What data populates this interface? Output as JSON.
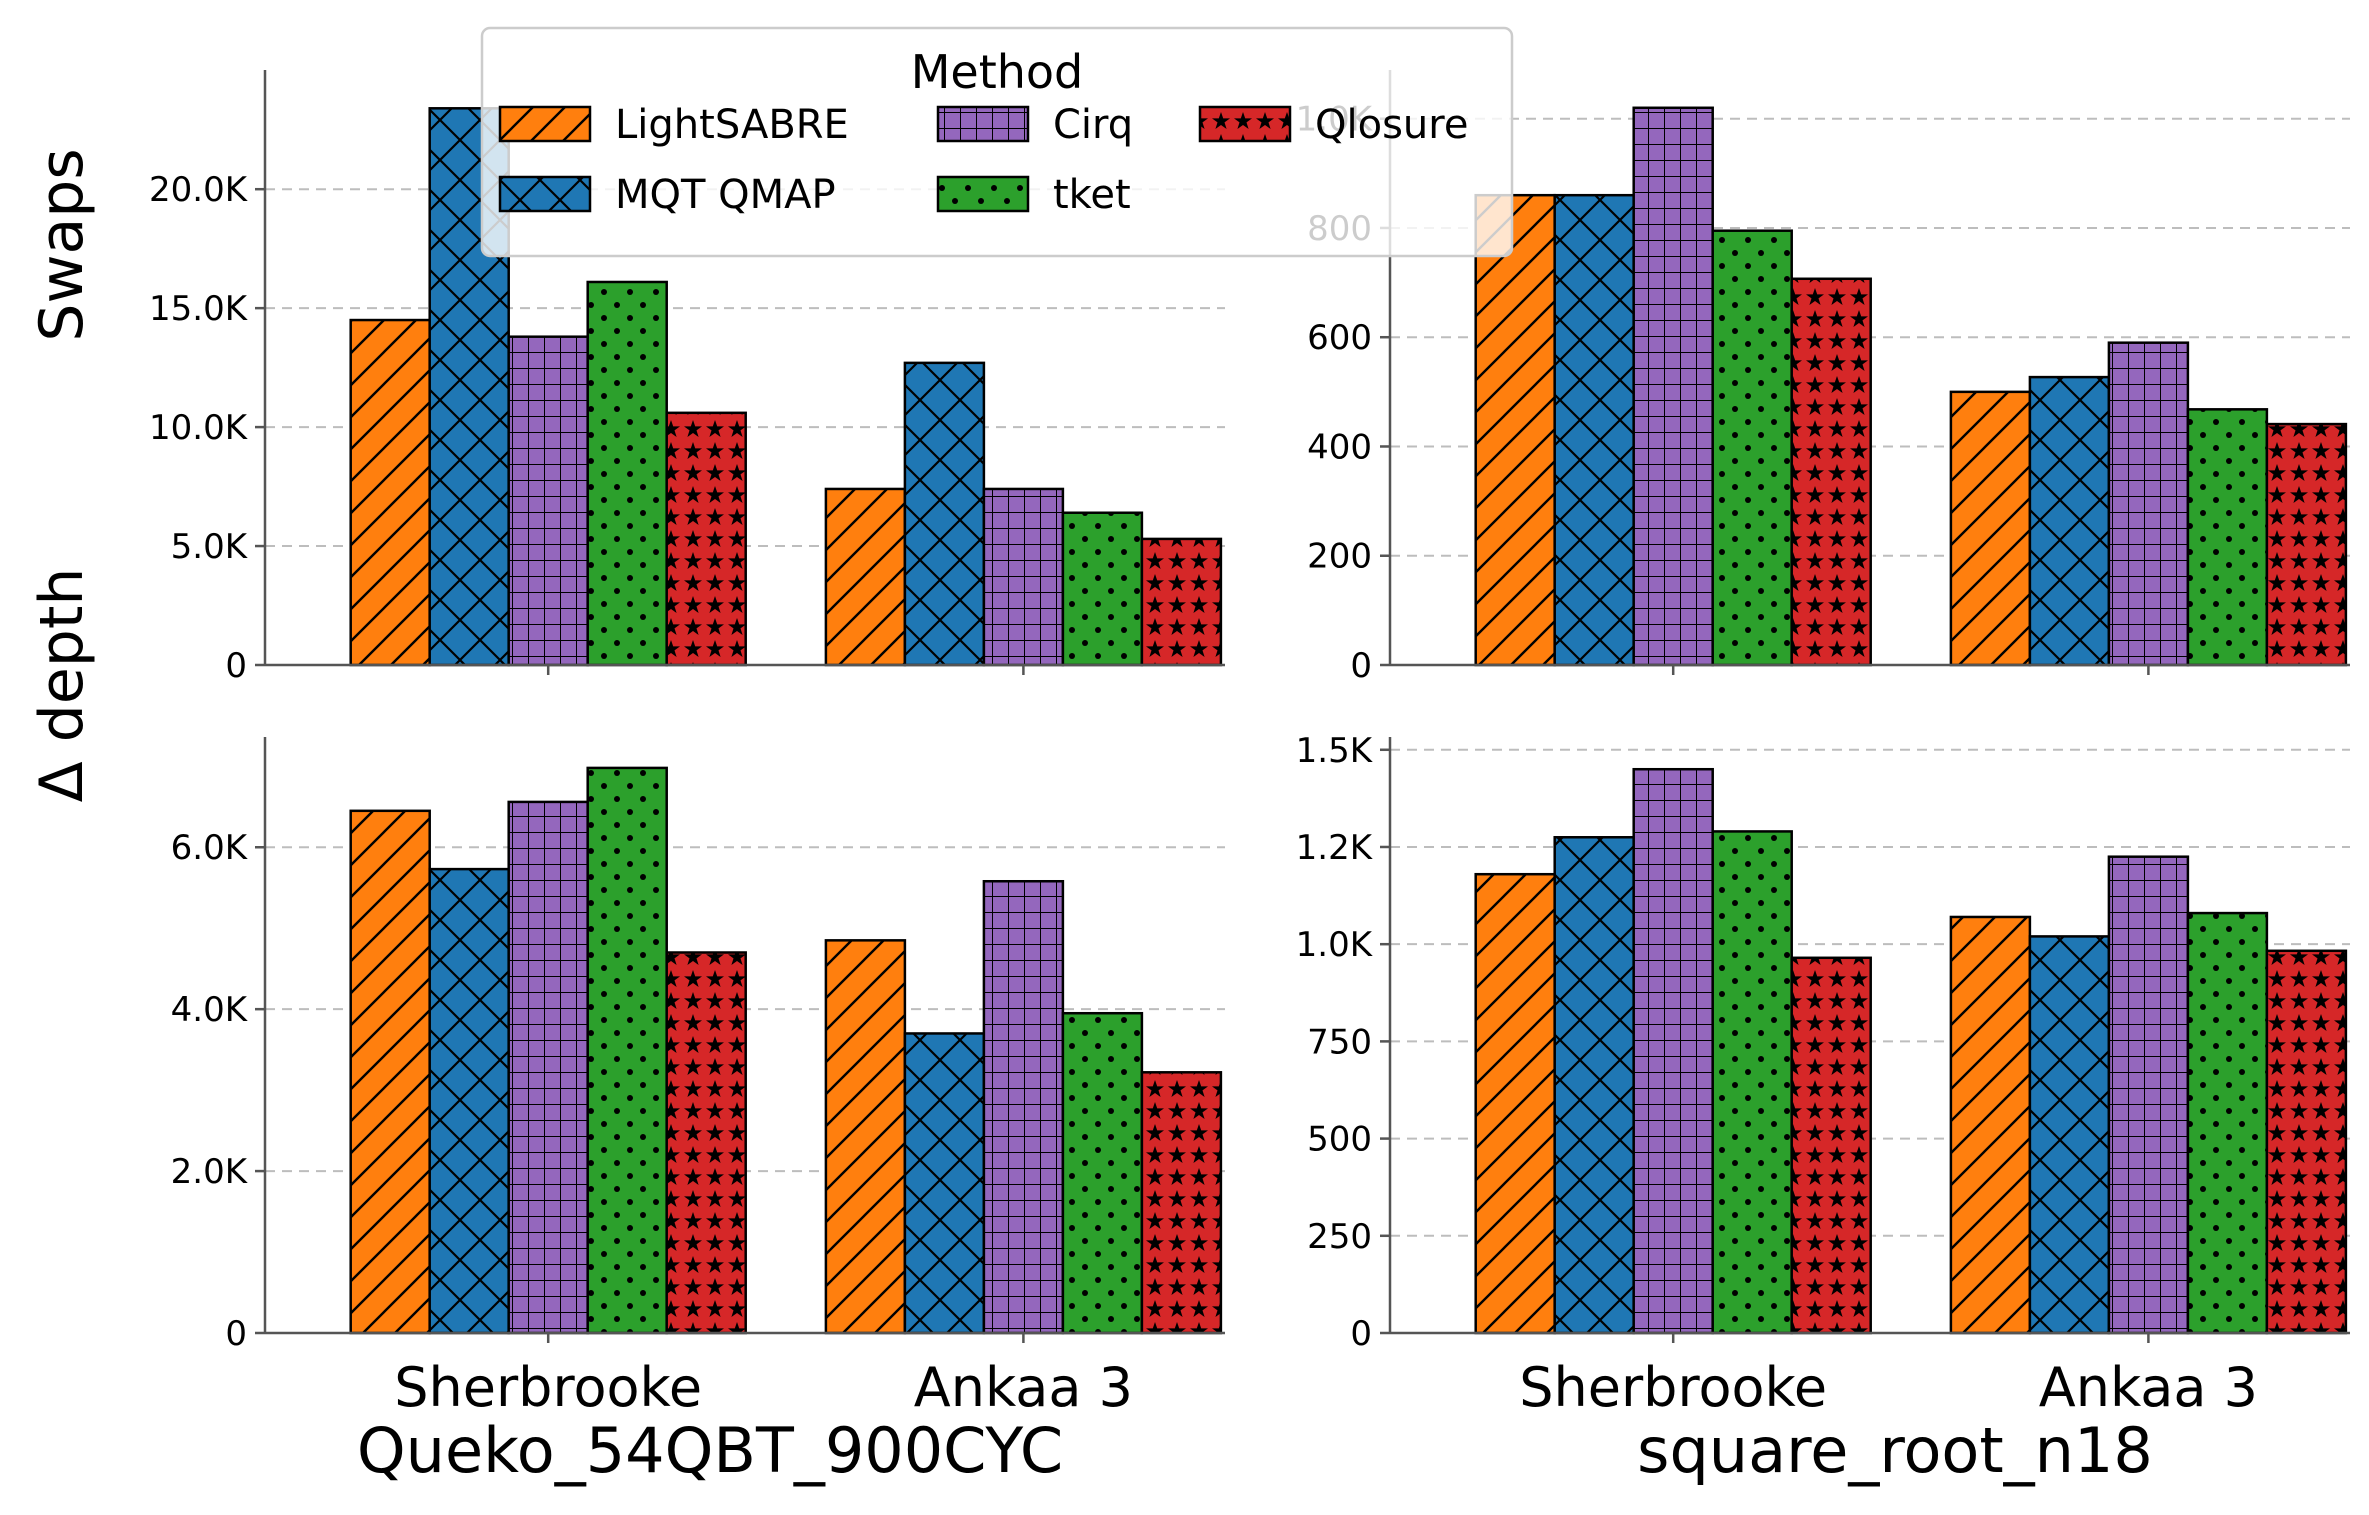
{
  "legend": {
    "title": "Method",
    "items": [
      {
        "name": "LightSABRE",
        "color": "#ff7f0e",
        "hatch": "diagonal"
      },
      {
        "name": "MQT QMAP",
        "color": "#1f77b4",
        "hatch": "crosshatch"
      },
      {
        "name": "Cirq",
        "color": "#9467bd",
        "hatch": "grid"
      },
      {
        "name": "tket",
        "color": "#2ca02c",
        "hatch": "dots"
      },
      {
        "name": "Qlosure",
        "color": "#d62728",
        "hatch": "stars"
      }
    ]
  },
  "chart_data": [
    {
      "id": "swaps-queko",
      "type": "bar",
      "ylabel": "Swaps",
      "xlabel": "",
      "categories": [
        "Sherbrooke",
        "Ankaa 3"
      ],
      "ylim": [
        0,
        24800
      ],
      "yticks": [
        0,
        5000,
        10000,
        15000,
        20000
      ],
      "ytick_labels": [
        "0",
        "5.0K",
        "10.0K",
        "15.0K",
        "20.0K"
      ],
      "series": [
        {
          "name": "LightSABRE",
          "values": [
            14500,
            7400
          ]
        },
        {
          "name": "MQT QMAP",
          "values": [
            23400,
            12700
          ]
        },
        {
          "name": "Cirq",
          "values": [
            13800,
            7400
          ]
        },
        {
          "name": "tket",
          "values": [
            16100,
            6400
          ]
        },
        {
          "name": "Qlosure",
          "values": [
            10600,
            5300
          ]
        }
      ]
    },
    {
      "id": "swaps-sqrt",
      "type": "bar",
      "ylabel": "",
      "xlabel": "",
      "categories": [
        "Sherbrooke",
        "Ankaa 3"
      ],
      "ylim": [
        0,
        1080
      ],
      "yticks": [
        0,
        200,
        400,
        600,
        800,
        1000
      ],
      "ytick_labels": [
        "0",
        "200",
        "400",
        "600",
        "800",
        "1.0K"
      ],
      "series": [
        {
          "name": "LightSABRE",
          "values": [
            860,
            500
          ]
        },
        {
          "name": "MQT QMAP",
          "values": [
            860,
            527
          ]
        },
        {
          "name": "Cirq",
          "values": [
            1020,
            590
          ]
        },
        {
          "name": "tket",
          "values": [
            795,
            468
          ]
        },
        {
          "name": "Qlosure",
          "values": [
            707,
            441
          ]
        }
      ]
    },
    {
      "id": "depth-queko",
      "type": "bar",
      "ylabel": "Δ depth",
      "xlabel": "Queko_54QBT_900CYC",
      "categories": [
        "Sherbrooke",
        "Ankaa 3"
      ],
      "ylim": [
        0,
        7300
      ],
      "yticks": [
        0,
        2000,
        4000,
        6000
      ],
      "ytick_labels": [
        "0",
        "2.0K",
        "4.0K",
        "6.0K"
      ],
      "series": [
        {
          "name": "LightSABRE",
          "values": [
            6450,
            4850
          ]
        },
        {
          "name": "MQT QMAP",
          "values": [
            5730,
            3700
          ]
        },
        {
          "name": "Cirq",
          "values": [
            6560,
            5580
          ]
        },
        {
          "name": "tket",
          "values": [
            6980,
            3950
          ]
        },
        {
          "name": "Qlosure",
          "values": [
            4700,
            3220
          ]
        }
      ]
    },
    {
      "id": "depth-sqrt",
      "type": "bar",
      "ylabel": "",
      "xlabel": "square_root_n18",
      "categories": [
        "Sherbrooke",
        "Ankaa 3"
      ],
      "ylim": [
        0,
        1520
      ],
      "yticks": [
        0,
        250,
        500,
        750,
        1000,
        1250,
        1500
      ],
      "ytick_labels": [
        "0",
        "250",
        "500",
        "750",
        "1.0K",
        "1.2K",
        "1.5K"
      ],
      "series": [
        {
          "name": "LightSABRE",
          "values": [
            1180,
            1070
          ]
        },
        {
          "name": "MQT QMAP",
          "values": [
            1275,
            1020
          ]
        },
        {
          "name": "Cirq",
          "values": [
            1450,
            1225
          ]
        },
        {
          "name": "tket",
          "values": [
            1290,
            1080
          ]
        },
        {
          "name": "Qlosure",
          "values": [
            965,
            983
          ]
        }
      ]
    }
  ]
}
